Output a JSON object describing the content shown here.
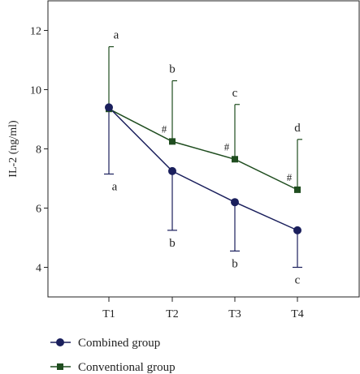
{
  "chart_data": {
    "type": "line",
    "ylabel": "IL-2 (ng/ml)",
    "xlabel": "",
    "title": "",
    "categories": [
      "T1",
      "T2",
      "T3",
      "T4"
    ],
    "ylim": [
      3,
      13
    ],
    "yticks": [
      4,
      6,
      8,
      10,
      12
    ],
    "grid": false,
    "legend_position": "bottom-left",
    "series": [
      {
        "name": "Combined group",
        "marker": "circle",
        "color": "#1a1f5c",
        "values": [
          9.4,
          7.25,
          6.2,
          5.25
        ],
        "error_down": [
          2.25,
          2.0,
          1.65,
          1.25
        ],
        "labels": [
          "a",
          "b",
          "b",
          "c"
        ]
      },
      {
        "name": "Conventional group",
        "marker": "square",
        "color": "#1f4d1f",
        "values": [
          9.35,
          8.25,
          7.65,
          6.62
        ],
        "error_up": [
          2.1,
          2.05,
          1.85,
          1.7
        ],
        "labels": [
          "a",
          "b",
          "c",
          "d"
        ],
        "hash_marks": [
          "",
          "#",
          "#",
          "#"
        ]
      }
    ]
  }
}
